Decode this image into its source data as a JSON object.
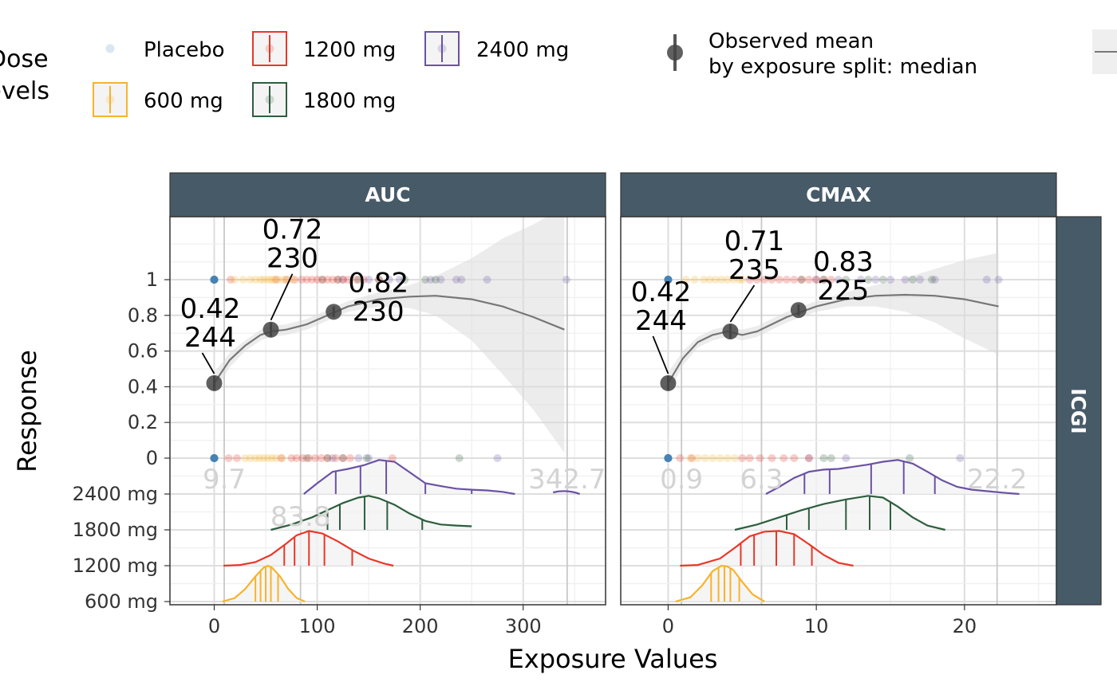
{
  "legend": {
    "dose_title": "Dose\nlevels",
    "doses": [
      {
        "label": "Placebo",
        "color": "#4682b4"
      },
      {
        "label": "600 mg",
        "color": "#f7b32b"
      },
      {
        "label": "1200 mg",
        "color": "#e8382a"
      },
      {
        "label": "1800 mg",
        "color": "#2e5e3e"
      },
      {
        "label": "2400 mg",
        "color": "#6b52a3"
      }
    ],
    "observed_line1": "Observed mean",
    "observed_line2": "by exposure split: median"
  },
  "strip_right": "ICGI",
  "y_title": "Response",
  "x_title": "Exposure Values",
  "chart_data": [
    {
      "panel": "AUC",
      "type": "scatter",
      "xlim": [
        -43,
        380
      ],
      "xticks": [
        0,
        100,
        200,
        300
      ],
      "yticks": [
        0,
        0.2,
        0.4,
        0.6,
        0.8,
        1
      ],
      "dose_rows": [
        "2400 mg",
        "1800 mg",
        "1200 mg",
        "600 mg"
      ],
      "grid": true,
      "vlines": [
        9.7,
        83.8,
        342.7
      ],
      "vline_labels": [
        {
          "text": "9.7",
          "x": 9.7
        },
        {
          "text": "83.8",
          "x": 83.8
        },
        {
          "text": "342.7",
          "x": 342.7
        }
      ],
      "observed_means": [
        {
          "x": 0,
          "y": 0.42,
          "label": "0.42\n244",
          "errlo": 0.38,
          "errhi": 0.46
        },
        {
          "x": 55,
          "y": 0.72,
          "label": "0.72\n230",
          "errlo": 0.68,
          "errhi": 0.76
        },
        {
          "x": 116,
          "y": 0.82,
          "label": "0.82\n230",
          "errlo": 0.79,
          "errhi": 0.85
        }
      ],
      "smooth": {
        "x": [
          0,
          15,
          30,
          45,
          55,
          70,
          90,
          110,
          130,
          160,
          190,
          215,
          250,
          280,
          310,
          340
        ],
        "y": [
          0.42,
          0.55,
          0.63,
          0.69,
          0.71,
          0.72,
          0.75,
          0.8,
          0.85,
          0.89,
          0.905,
          0.91,
          0.89,
          0.85,
          0.79,
          0.72
        ],
        "ylo": [
          0.36,
          0.51,
          0.6,
          0.66,
          0.68,
          0.69,
          0.72,
          0.77,
          0.82,
          0.85,
          0.84,
          0.8,
          0.66,
          0.47,
          0.27,
          0.03
        ],
        "yhi": [
          0.48,
          0.59,
          0.66,
          0.72,
          0.74,
          0.75,
          0.78,
          0.83,
          0.88,
          0.93,
          0.97,
          1.02,
          1.12,
          1.23,
          1.31,
          1.41
        ]
      },
      "points": {
        "Placebo": {
          "y1": [
            0,
            0,
            0
          ],
          "y0": [
            0,
            0,
            0
          ]
        },
        "600 mg": {
          "y1": [
            20,
            28,
            35,
            40,
            45,
            48,
            52,
            55,
            58,
            62,
            67,
            72,
            76
          ],
          "y0": [
            30,
            35,
            40,
            44,
            48,
            52,
            56,
            60,
            66
          ]
        },
        "1200 mg": {
          "y1": [
            16,
            60,
            70,
            78,
            85,
            90,
            95,
            100,
            105,
            110,
            115,
            120,
            125,
            130,
            138,
            145,
            160
          ],
          "y0": [
            14,
            22,
            65,
            75,
            80,
            86,
            92,
            98,
            104,
            110,
            118,
            125,
            132,
            173
          ]
        },
        "1800 mg": {
          "y1": [
            105,
            120,
            140,
            160,
            185,
            205,
            215
          ],
          "y0": [
            90,
            110,
            125,
            148,
            238
          ]
        },
        "2400 mg": {
          "y1": [
            125,
            150,
            170,
            180,
            210,
            220,
            235,
            240,
            265,
            342
          ],
          "y0": [
            115,
            140,
            150,
            275
          ]
        }
      },
      "densities": {
        "2400 mg": {
          "x": [
            87,
            100,
            115,
            130,
            145,
            160,
            175,
            190,
            205,
            220,
            235,
            250,
            265,
            280,
            292
          ],
          "h": [
            0.0,
            0.3,
            0.62,
            0.7,
            0.8,
            0.95,
            0.9,
            0.6,
            0.3,
            0.22,
            0.15,
            0.12,
            0.1,
            0.06,
            0.0
          ],
          "q": [
            118,
            142,
            167,
            205,
            250
          ],
          "tail": [
            329,
            355
          ]
        },
        "1800 mg": {
          "x": [
            55,
            75,
            95,
            110,
            125,
            140,
            150,
            160,
            175,
            190,
            205,
            220,
            235,
            250
          ],
          "h": [
            0.0,
            0.15,
            0.35,
            0.55,
            0.75,
            0.9,
            0.95,
            0.88,
            0.7,
            0.45,
            0.25,
            0.15,
            0.12,
            0.1
          ],
          "q": [
            110,
            122,
            146,
            168,
            202
          ]
        },
        "1200 mg": {
          "x": [
            9,
            25,
            40,
            55,
            70,
            80,
            92,
            105,
            120,
            135,
            150,
            165,
            174
          ],
          "h": [
            0.0,
            0.02,
            0.1,
            0.3,
            0.62,
            0.85,
            0.97,
            0.9,
            0.68,
            0.42,
            0.2,
            0.06,
            0.0
          ],
          "q": [
            68,
            78,
            92,
            107,
            134
          ]
        },
        "600 mg": {
          "x": [
            8,
            20,
            30,
            40,
            48,
            52,
            56,
            64,
            72,
            80,
            88
          ],
          "h": [
            0.0,
            0.1,
            0.35,
            0.7,
            0.95,
            1.0,
            0.95,
            0.7,
            0.35,
            0.1,
            0.0
          ],
          "q": [
            40,
            45,
            50,
            55,
            62
          ]
        }
      }
    },
    {
      "panel": "CMAX",
      "type": "scatter",
      "xlim": [
        -3.2,
        26.2
      ],
      "xticks": [
        0,
        10,
        20
      ],
      "yticks": [
        0,
        0.2,
        0.4,
        0.6,
        0.8,
        1
      ],
      "dose_rows": [
        "2400 mg",
        "1800 mg",
        "1200 mg",
        "600 mg"
      ],
      "grid": true,
      "vlines": [
        0.9,
        6.3,
        22.2
      ],
      "vline_labels": [
        {
          "text": "0.9",
          "x": 0.9
        },
        {
          "text": "6.3",
          "x": 6.3
        },
        {
          "text": "22.2",
          "x": 22.2
        }
      ],
      "observed_means": [
        {
          "x": 0,
          "y": 0.42,
          "label": "0.42\n244",
          "errlo": 0.38,
          "errhi": 0.46
        },
        {
          "x": 4.2,
          "y": 0.71,
          "label": "0.71\n235",
          "errlo": 0.67,
          "errhi": 0.75
        },
        {
          "x": 8.8,
          "y": 0.83,
          "label": "0.83\n225",
          "errlo": 0.8,
          "errhi": 0.86
        }
      ],
      "smooth": {
        "x": [
          0,
          1,
          2,
          3,
          4,
          5,
          6,
          7,
          8,
          10,
          12,
          14,
          16,
          18,
          20,
          22.3
        ],
        "y": [
          0.42,
          0.56,
          0.65,
          0.69,
          0.71,
          0.69,
          0.71,
          0.75,
          0.79,
          0.85,
          0.89,
          0.91,
          0.915,
          0.91,
          0.89,
          0.85
        ],
        "ylo": [
          0.36,
          0.52,
          0.62,
          0.66,
          0.68,
          0.66,
          0.68,
          0.72,
          0.76,
          0.82,
          0.85,
          0.85,
          0.82,
          0.76,
          0.67,
          0.58
        ],
        "yhi": [
          0.48,
          0.6,
          0.68,
          0.72,
          0.74,
          0.72,
          0.74,
          0.78,
          0.82,
          0.88,
          0.93,
          0.97,
          1.01,
          1.06,
          1.11,
          1.15
        ]
      },
      "points": {
        "Placebo": {
          "y1": [
            0,
            0,
            0
          ],
          "y0": [
            0,
            0,
            0
          ]
        },
        "600 mg": {
          "y1": [
            1.2,
            1.8,
            2.4,
            2.8,
            3.2,
            3.6,
            4.0,
            4.4,
            4.8,
            5.0
          ],
          "y0": [
            1.5,
            2.0,
            2.5,
            3.0,
            3.5,
            4.0,
            4.5
          ]
        },
        "1200 mg": {
          "y1": [
            5.5,
            6.0,
            6.5,
            7.0,
            7.5,
            8.0,
            8.5,
            9.0,
            9.5,
            10.0,
            10.5,
            11.0
          ],
          "y0": [
            0.8,
            1.6,
            5.0,
            5.5,
            6.2,
            7.0,
            7.8,
            8.5,
            9.5
          ]
        },
        "1800 mg": {
          "y1": [
            9.0,
            10.5,
            12.0,
            13.5,
            14.5,
            16.5,
            17.8
          ],
          "y0": [
            10.5,
            11.0,
            16.3
          ]
        },
        "2400 mg": {
          "y1": [
            10.0,
            11.5,
            13.0,
            14.0,
            15.0,
            16.0,
            17.0,
            18.0,
            21.5,
            22.3
          ],
          "y0": [
            9.5,
            12.0,
            19.7
          ]
        }
      },
      "densities": {
        "2400 mg": {
          "x": [
            6.6,
            7.5,
            8.5,
            9.5,
            10.5,
            11.5,
            12.5,
            13.5,
            14.5,
            15.5,
            16.5,
            17.5,
            18.5,
            19.5,
            20.5,
            21.5,
            22.5,
            23.7
          ],
          "h": [
            0.0,
            0.2,
            0.45,
            0.62,
            0.68,
            0.7,
            0.76,
            0.82,
            0.9,
            0.95,
            0.85,
            0.62,
            0.38,
            0.2,
            0.12,
            0.08,
            0.04,
            0.0
          ],
          "q": [
            9.2,
            10.9,
            13.7,
            15.9,
            18.0
          ]
        },
        "1800 mg": {
          "x": [
            4.5,
            6,
            7.5,
            9,
            10.5,
            12,
            13.5,
            14.5,
            15.5,
            16.5,
            17.5,
            18.7
          ],
          "h": [
            0.0,
            0.15,
            0.35,
            0.55,
            0.72,
            0.85,
            0.95,
            0.9,
            0.65,
            0.35,
            0.12,
            0.0
          ],
          "q": [
            8.0,
            9.5,
            12.0,
            13.6,
            15.0
          ]
        },
        "1200 mg": {
          "x": [
            0.8,
            2,
            3.5,
            4.5,
            5.5,
            6.5,
            7.5,
            8.5,
            9.5,
            10.5,
            11.5,
            12.5
          ],
          "h": [
            0.0,
            0.02,
            0.2,
            0.5,
            0.82,
            0.95,
            0.97,
            0.88,
            0.6,
            0.3,
            0.08,
            0.0
          ],
          "q": [
            4.9,
            5.8,
            7.3,
            8.5,
            9.7
          ]
        },
        "600 mg": {
          "x": [
            0.5,
            1.5,
            2.3,
            3.0,
            3.6,
            4.0,
            4.4,
            5.0,
            5.7,
            6.5
          ],
          "h": [
            0.0,
            0.12,
            0.45,
            0.85,
            1.0,
            0.98,
            0.88,
            0.55,
            0.2,
            0.0
          ],
          "q": [
            2.9,
            3.4,
            3.8,
            4.2,
            4.8
          ]
        }
      }
    }
  ]
}
